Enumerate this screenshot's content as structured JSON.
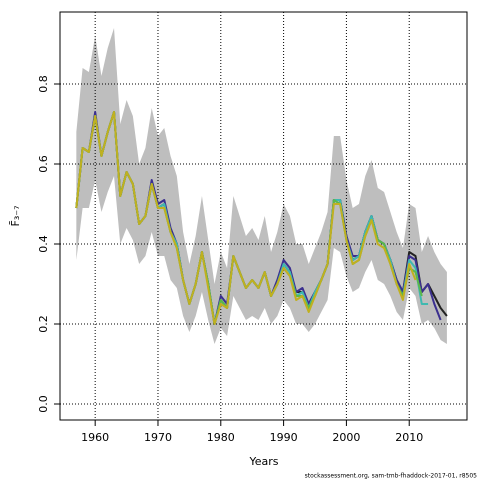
{
  "chart_data": {
    "type": "line",
    "xlabel": "Years",
    "ylabel": "F̄₃₋₇",
    "source": "stockassessment.org, sam-tmb-fhaddock-2017-01, r8505",
    "x": [
      1957,
      1958,
      1959,
      1960,
      1961,
      1962,
      1963,
      1964,
      1965,
      1966,
      1967,
      1968,
      1969,
      1970,
      1971,
      1972,
      1973,
      1974,
      1975,
      1976,
      1977,
      1978,
      1979,
      1980,
      1981,
      1982,
      1983,
      1984,
      1985,
      1986,
      1987,
      1988,
      1989,
      1990,
      1991,
      1992,
      1993,
      1994,
      1995,
      1996,
      1997,
      1998,
      1999,
      2000,
      2001,
      2002,
      2003,
      2004,
      2005,
      2006,
      2007,
      2008,
      2009,
      2010,
      2011,
      2012,
      2013,
      2014,
      2015,
      2016
    ],
    "band": {
      "color": "#bebebe",
      "upper": [
        0.68,
        0.84,
        0.83,
        0.92,
        0.82,
        0.89,
        0.94,
        0.7,
        0.76,
        0.72,
        0.6,
        0.64,
        0.74,
        0.67,
        0.69,
        0.62,
        0.57,
        0.43,
        0.35,
        0.42,
        0.52,
        0.41,
        0.3,
        0.38,
        0.34,
        0.52,
        0.47,
        0.42,
        0.44,
        0.41,
        0.47,
        0.38,
        0.43,
        0.5,
        0.47,
        0.4,
        0.4,
        0.35,
        0.39,
        0.43,
        0.48,
        0.67,
        0.67,
        0.56,
        0.49,
        0.5,
        0.57,
        0.61,
        0.54,
        0.53,
        0.48,
        0.43,
        0.39,
        0.5,
        0.49,
        0.38,
        0.42,
        0.38,
        0.35,
        0.33
      ],
      "lower": [
        0.36,
        0.49,
        0.49,
        0.56,
        0.48,
        0.53,
        0.57,
        0.4,
        0.44,
        0.41,
        0.35,
        0.37,
        0.43,
        0.37,
        0.37,
        0.31,
        0.29,
        0.22,
        0.18,
        0.22,
        0.28,
        0.21,
        0.15,
        0.19,
        0.17,
        0.27,
        0.24,
        0.21,
        0.22,
        0.21,
        0.24,
        0.2,
        0.22,
        0.26,
        0.24,
        0.2,
        0.2,
        0.18,
        0.2,
        0.23,
        0.26,
        0.39,
        0.38,
        0.32,
        0.28,
        0.29,
        0.33,
        0.36,
        0.31,
        0.3,
        0.27,
        0.23,
        0.21,
        0.29,
        0.27,
        0.2,
        0.21,
        0.19,
        0.16,
        0.15
      ]
    },
    "series": [
      {
        "color": "#222222",
        "values": [
          0.49,
          0.64,
          0.63,
          0.72,
          0.62,
          0.68,
          0.73,
          0.52,
          0.58,
          0.55,
          0.45,
          0.47,
          0.55,
          0.49,
          0.5,
          0.43,
          0.4,
          0.31,
          0.25,
          0.3,
          0.38,
          0.3,
          0.2,
          0.26,
          0.24,
          0.37,
          0.33,
          0.29,
          0.31,
          0.29,
          0.33,
          0.27,
          0.3,
          0.35,
          0.33,
          0.28,
          0.28,
          0.25,
          0.28,
          0.31,
          0.35,
          0.51,
          0.51,
          0.42,
          0.36,
          0.37,
          0.43,
          0.47,
          0.41,
          0.4,
          0.36,
          0.31,
          0.28,
          0.38,
          0.37,
          0.28,
          0.3,
          0.27,
          0.24,
          0.22
        ]
      },
      {
        "color": "#3b2f8f",
        "values": [
          0.49,
          0.64,
          0.63,
          0.73,
          0.62,
          0.68,
          0.73,
          0.52,
          0.58,
          0.55,
          0.45,
          0.47,
          0.56,
          0.5,
          0.51,
          0.44,
          0.4,
          0.31,
          0.25,
          0.3,
          0.38,
          0.3,
          0.2,
          0.27,
          0.25,
          0.37,
          0.33,
          0.29,
          0.31,
          0.29,
          0.33,
          0.27,
          0.31,
          0.36,
          0.34,
          0.28,
          0.29,
          0.25,
          0.28,
          0.31,
          0.35,
          0.51,
          0.51,
          0.42,
          0.37,
          0.37,
          0.43,
          0.47,
          0.41,
          0.4,
          0.36,
          0.31,
          0.28,
          0.37,
          0.36,
          0.28,
          0.3,
          0.25,
          0.21,
          null
        ]
      },
      {
        "color": "#3fb9b0",
        "values": [
          0.49,
          0.64,
          0.63,
          0.72,
          0.62,
          0.68,
          0.73,
          0.52,
          0.58,
          0.55,
          0.45,
          0.47,
          0.55,
          0.49,
          0.5,
          0.43,
          0.4,
          0.31,
          0.25,
          0.3,
          0.38,
          0.3,
          0.2,
          0.26,
          0.24,
          0.37,
          0.33,
          0.29,
          0.31,
          0.29,
          0.33,
          0.27,
          0.3,
          0.35,
          0.33,
          0.27,
          0.28,
          0.24,
          0.28,
          0.31,
          0.35,
          0.51,
          0.51,
          0.41,
          0.36,
          0.37,
          0.43,
          0.47,
          0.41,
          0.4,
          0.36,
          0.3,
          0.27,
          0.36,
          0.34,
          0.25,
          0.25,
          null,
          null,
          null
        ]
      },
      {
        "color": "#5bb84a",
        "values": [
          0.49,
          0.64,
          0.63,
          0.72,
          0.62,
          0.68,
          0.73,
          0.52,
          0.58,
          0.55,
          0.45,
          0.47,
          0.55,
          0.49,
          0.49,
          0.43,
          0.39,
          0.31,
          0.25,
          0.3,
          0.38,
          0.3,
          0.2,
          0.26,
          0.24,
          0.37,
          0.33,
          0.29,
          0.31,
          0.29,
          0.33,
          0.27,
          0.3,
          0.34,
          0.32,
          0.27,
          0.27,
          0.24,
          0.27,
          0.31,
          0.35,
          0.51,
          0.5,
          0.41,
          0.35,
          0.36,
          0.42,
          0.46,
          0.41,
          0.4,
          0.35,
          0.3,
          0.27,
          0.34,
          0.33,
          0.27,
          null,
          null,
          null,
          null
        ]
      },
      {
        "color": "#c0b020",
        "values": [
          0.49,
          0.64,
          0.63,
          0.72,
          0.62,
          0.68,
          0.73,
          0.52,
          0.58,
          0.55,
          0.45,
          0.47,
          0.55,
          0.49,
          0.49,
          0.43,
          0.39,
          0.31,
          0.25,
          0.3,
          0.38,
          0.29,
          0.2,
          0.25,
          0.24,
          0.37,
          0.33,
          0.29,
          0.31,
          0.29,
          0.33,
          0.27,
          0.3,
          0.34,
          0.32,
          0.26,
          0.27,
          0.23,
          0.27,
          0.31,
          0.35,
          0.5,
          0.5,
          0.41,
          0.35,
          0.36,
          0.42,
          0.46,
          0.4,
          0.39,
          0.35,
          0.3,
          0.26,
          0.35,
          0.31,
          null,
          null,
          null,
          null,
          null
        ]
      }
    ],
    "xlim": [
      1954.4,
      2019.2
    ],
    "ylim": [
      -0.04,
      0.98
    ],
    "xticks": [
      1960,
      1970,
      1980,
      1990,
      2000,
      2010
    ],
    "yticks": [
      {
        "value": 0,
        "label": "0.0"
      },
      {
        "value": 0.2,
        "label": "0.2"
      },
      {
        "value": 0.4,
        "label": "0.4"
      },
      {
        "value": 0.6,
        "label": "0.6"
      },
      {
        "value": 0.8,
        "label": "0.8"
      }
    ],
    "grid": true
  }
}
